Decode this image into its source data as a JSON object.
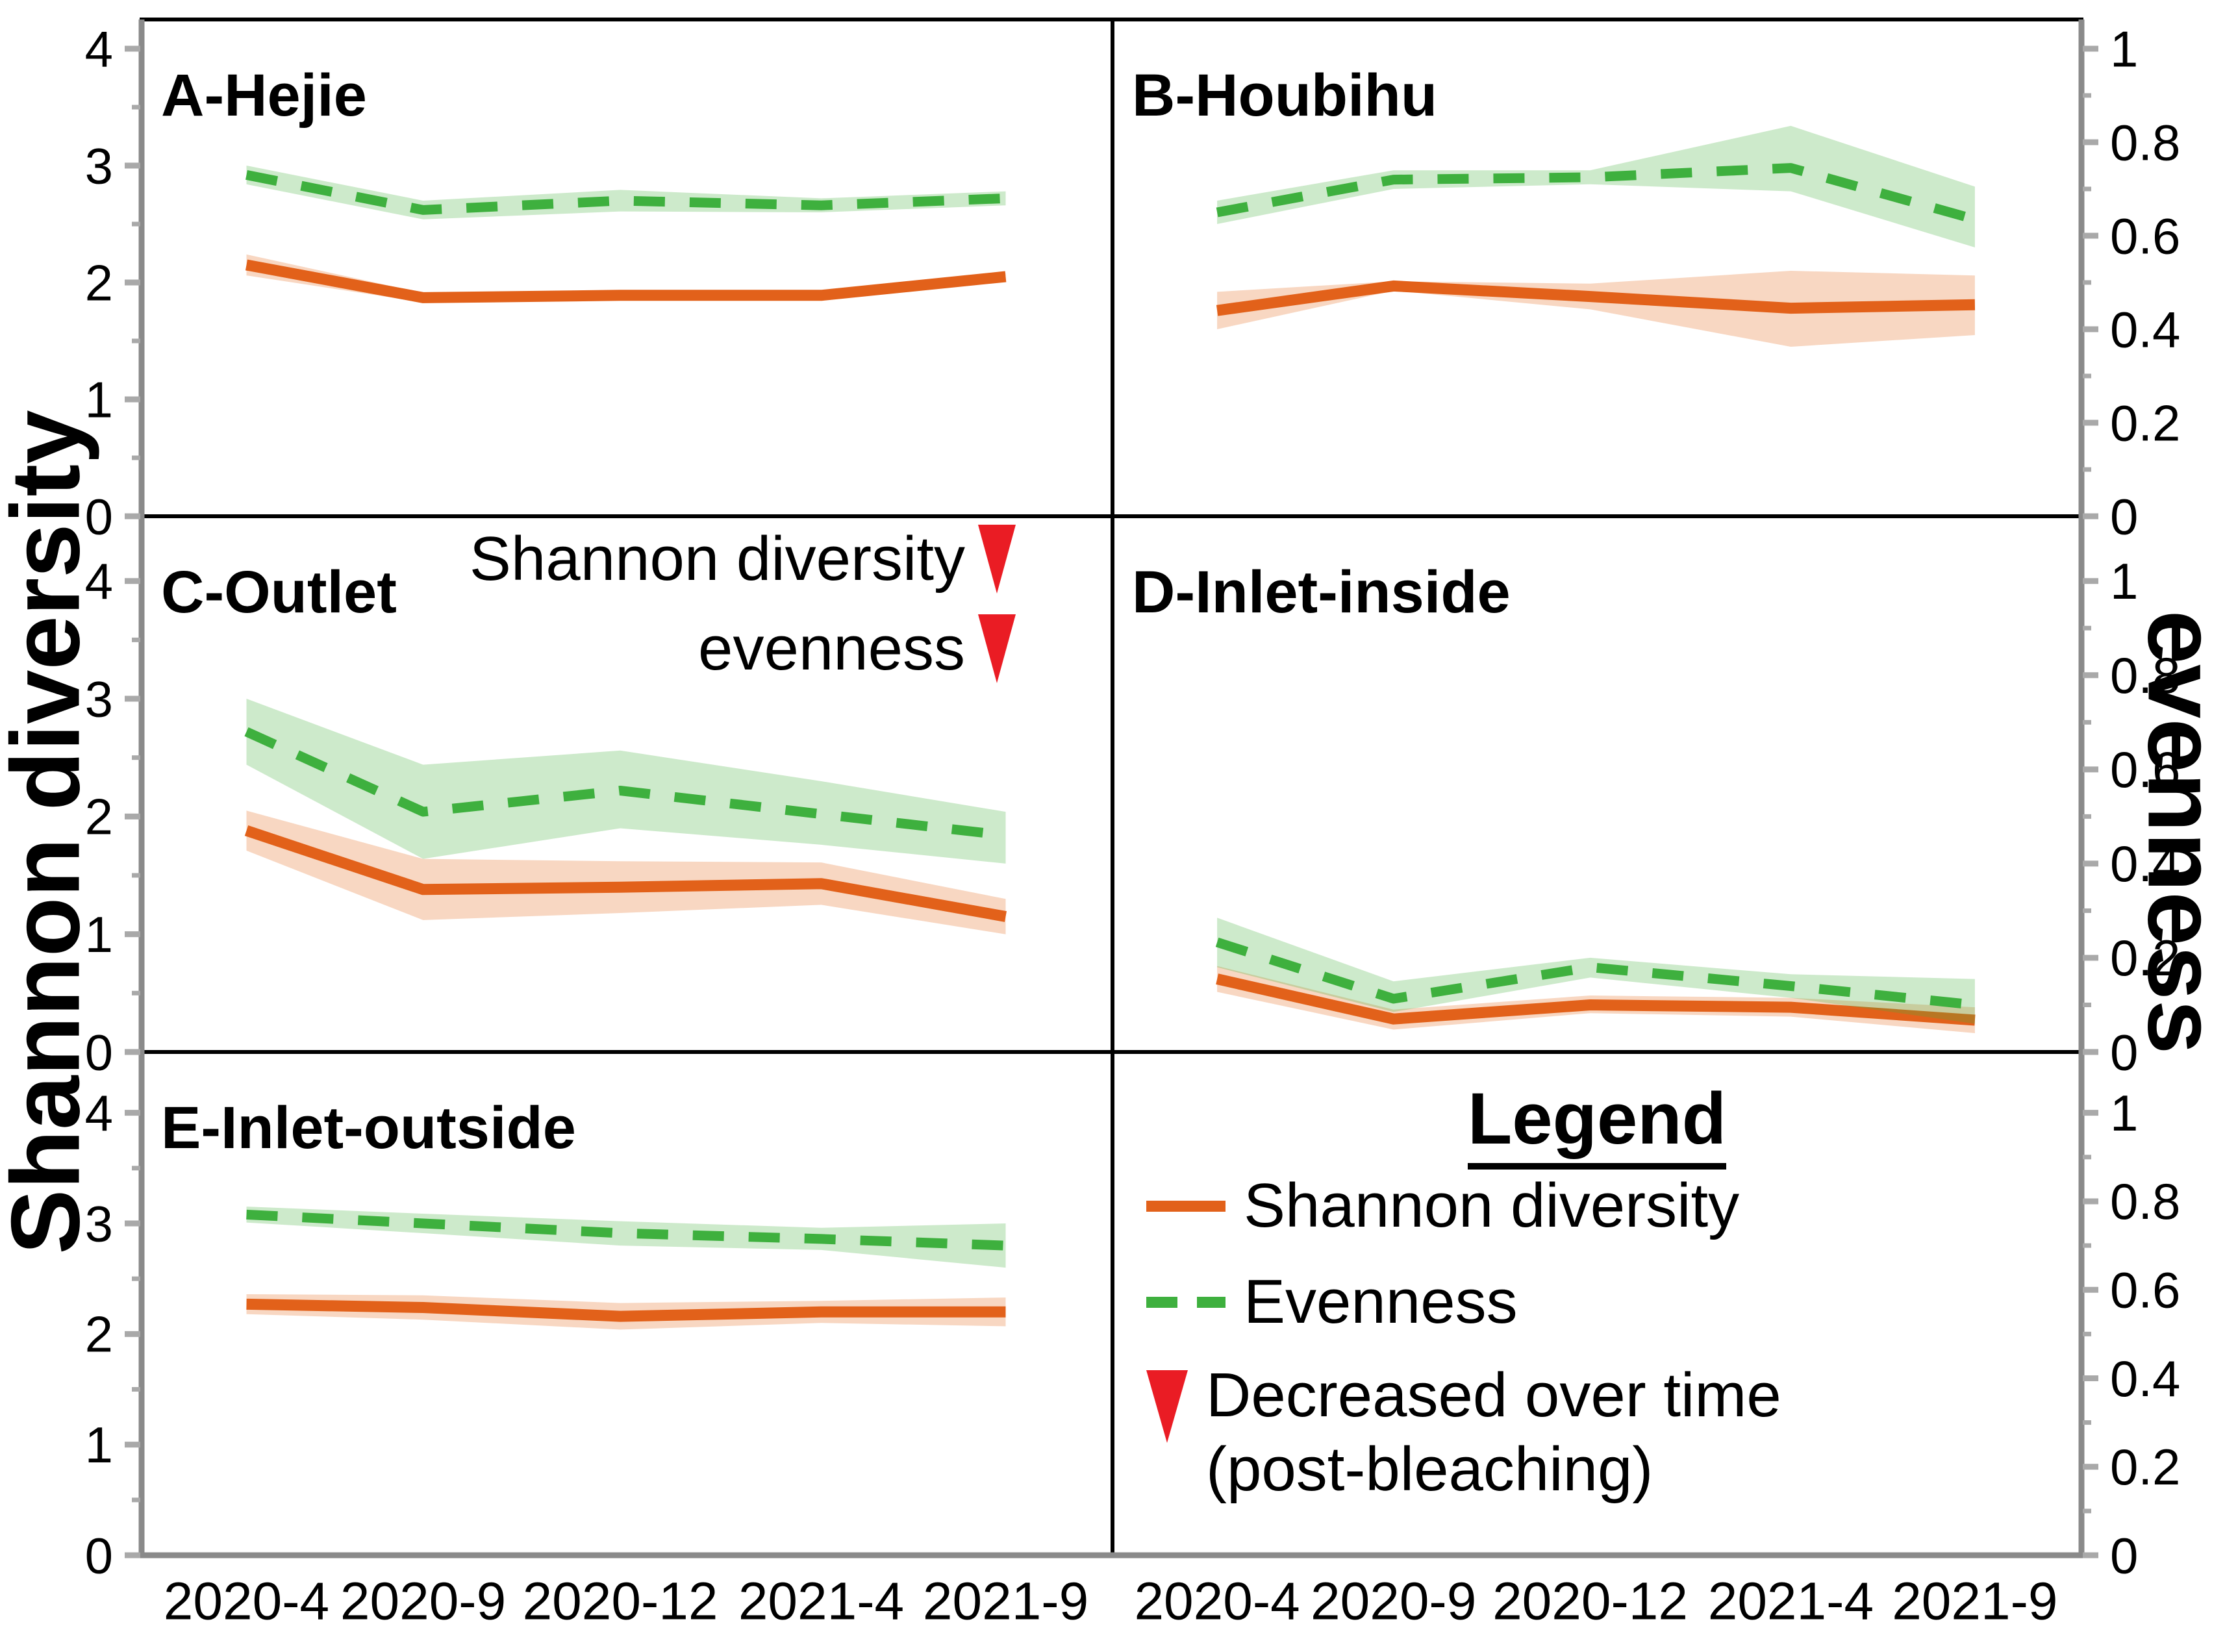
{
  "figure": {
    "left_axis_label": "Shannon diversity",
    "right_axis_label": "evenness",
    "x_tick_labels": [
      "2020-4",
      "2020-9",
      "2020-12",
      "2021-4",
      "2021-9"
    ],
    "left_tick_labels": [
      "0",
      "1",
      "2",
      "3",
      "4"
    ],
    "right_tick_labels": [
      "0",
      "0.2",
      "0.4",
      "0.6",
      "0.8",
      "1"
    ]
  },
  "colors": {
    "shannon_line": "#e2611a",
    "shannon_band": "rgba(230,106,31,0.27)",
    "evenness_line": "#3eb03e",
    "evenness_band": "rgba(70,176,62,0.27)",
    "triangle_red": "#ea1c24",
    "tick_gray": "#a9a9a9",
    "spine_gray": "#8a8a8a",
    "border_black": "#000000"
  },
  "legend": {
    "title": "Legend",
    "items": [
      {
        "marker": "orange-solid-line",
        "label": "Shannon diversity"
      },
      {
        "marker": "green-dashed-line",
        "label": "Evenness"
      },
      {
        "marker": "red-down-triangle",
        "label_line1": "Decreased over time",
        "label_line2": "(post-bleaching)"
      }
    ]
  },
  "chart_data": [
    {
      "type": "line",
      "id": "A",
      "title": "A-Hejie",
      "x": [
        "2020-4",
        "2020-9",
        "2020-12",
        "2021-4",
        "2021-9"
      ],
      "left_axis": {
        "label": "Shannon diversity",
        "range": [
          0,
          4
        ],
        "ticks": [
          0,
          1,
          2,
          3,
          4
        ]
      },
      "right_axis": {
        "label": "evenness",
        "range": [
          0,
          1
        ],
        "ticks": [
          0,
          0.2,
          0.4,
          0.6,
          0.8,
          1
        ]
      },
      "series": [
        {
          "name": "Shannon diversity",
          "axis": "left",
          "values": [
            2.15,
            1.87,
            1.89,
            1.89,
            2.05
          ],
          "band_upper": [
            2.24,
            1.91,
            1.93,
            1.92,
            2.08
          ],
          "band_lower": [
            2.06,
            1.83,
            1.85,
            1.86,
            2.02
          ]
        },
        {
          "name": "Evenness",
          "axis": "right",
          "values": [
            0.73,
            0.655,
            0.675,
            0.665,
            0.68
          ],
          "band_upper": [
            0.75,
            0.675,
            0.698,
            0.68,
            0.695
          ],
          "band_lower": [
            0.71,
            0.635,
            0.652,
            0.65,
            0.665
          ]
        }
      ],
      "annotations": []
    },
    {
      "type": "line",
      "id": "B",
      "title": "B-Houbihu",
      "x": [
        "2020-4",
        "2020-9",
        "2020-12",
        "2021-4",
        "2021-9"
      ],
      "left_axis": {
        "label": "Shannon diversity",
        "range": [
          0,
          4
        ],
        "ticks": [
          0,
          1,
          2,
          3,
          4
        ]
      },
      "right_axis": {
        "label": "evenness",
        "range": [
          0,
          1
        ],
        "ticks": [
          0,
          0.2,
          0.4,
          0.6,
          0.8,
          1
        ]
      },
      "series": [
        {
          "name": "Shannon diversity",
          "axis": "left",
          "values": [
            1.76,
            1.97,
            1.88,
            1.78,
            1.81
          ],
          "band_upper": [
            1.92,
            2.01,
            1.99,
            2.1,
            2.06
          ],
          "band_lower": [
            1.6,
            1.93,
            1.77,
            1.45,
            1.55
          ]
        },
        {
          "name": "Evenness",
          "axis": "right",
          "values": [
            0.65,
            0.72,
            0.725,
            0.745,
            0.635
          ],
          "band_upper": [
            0.675,
            0.74,
            0.74,
            0.835,
            0.705
          ],
          "band_lower": [
            0.625,
            0.7,
            0.71,
            0.695,
            0.575
          ]
        }
      ],
      "annotations": []
    },
    {
      "type": "line",
      "id": "C",
      "title": "C-Outlet",
      "x": [
        "2020-4",
        "2020-9",
        "2020-12",
        "2021-4",
        "2021-9"
      ],
      "left_axis": {
        "label": "Shannon diversity",
        "range": [
          0,
          4
        ],
        "ticks": [
          0,
          1,
          2,
          3,
          4
        ]
      },
      "right_axis": {
        "label": "evenness",
        "range": [
          0,
          1
        ],
        "ticks": [
          0,
          0.2,
          0.4,
          0.6,
          0.8,
          1
        ]
      },
      "series": [
        {
          "name": "Shannon diversity",
          "axis": "left",
          "values": [
            1.88,
            1.38,
            1.4,
            1.43,
            1.15
          ],
          "band_upper": [
            2.05,
            1.64,
            1.62,
            1.61,
            1.3
          ],
          "band_lower": [
            1.71,
            1.12,
            1.18,
            1.25,
            1.0
          ]
        },
        {
          "name": "Evenness",
          "axis": "right",
          "values": [
            0.68,
            0.51,
            0.555,
            0.505,
            0.46
          ],
          "band_upper": [
            0.75,
            0.61,
            0.64,
            0.575,
            0.51
          ],
          "band_lower": [
            0.61,
            0.41,
            0.475,
            0.44,
            0.4
          ]
        }
      ],
      "annotations": [
        {
          "text": "Shannon diversity",
          "marker": "red-down-triangle"
        },
        {
          "text": "evenness",
          "marker": "red-down-triangle"
        }
      ]
    },
    {
      "type": "line",
      "id": "D",
      "title": "D-Inlet-inside",
      "x": [
        "2020-4",
        "2020-9",
        "2020-12",
        "2021-4",
        "2021-9"
      ],
      "left_axis": {
        "label": "Shannon diversity",
        "range": [
          0,
          4
        ],
        "ticks": [
          0,
          1,
          2,
          3,
          4
        ]
      },
      "right_axis": {
        "label": "evenness",
        "range": [
          0,
          1
        ],
        "ticks": [
          0,
          0.2,
          0.4,
          0.6,
          0.8,
          1
        ]
      },
      "series": [
        {
          "name": "Shannon diversity",
          "axis": "left",
          "values": [
            0.62,
            0.28,
            0.4,
            0.38,
            0.27
          ],
          "band_upper": [
            0.73,
            0.36,
            0.48,
            0.46,
            0.38
          ],
          "band_lower": [
            0.51,
            0.19,
            0.33,
            0.3,
            0.16
          ]
        },
        {
          "name": "Evenness",
          "axis": "right",
          "values": [
            0.233,
            0.113,
            0.18,
            0.14,
            0.1
          ],
          "band_upper": [
            0.285,
            0.15,
            0.2,
            0.165,
            0.155
          ],
          "band_lower": [
            0.18,
            0.085,
            0.158,
            0.115,
            0.06
          ]
        }
      ],
      "annotations": []
    },
    {
      "type": "line",
      "id": "E",
      "title": "E-Inlet-outside",
      "x": [
        "2020-4",
        "2020-9",
        "2020-12",
        "2021-4",
        "2021-9"
      ],
      "left_axis": {
        "label": "Shannon diversity",
        "range": [
          0,
          4
        ],
        "ticks": [
          0,
          1,
          2,
          3,
          4
        ]
      },
      "right_axis": {
        "label": "evenness",
        "range": [
          0,
          1
        ],
        "ticks": [
          0,
          0.2,
          0.4,
          0.6,
          0.8,
          1
        ]
      },
      "series": [
        {
          "name": "Shannon diversity",
          "axis": "left",
          "values": [
            2.27,
            2.24,
            2.16,
            2.2,
            2.2
          ],
          "band_upper": [
            2.36,
            2.35,
            2.28,
            2.3,
            2.33
          ],
          "band_lower": [
            2.18,
            2.13,
            2.04,
            2.1,
            2.07
          ]
        },
        {
          "name": "Evenness",
          "axis": "right",
          "values": [
            0.77,
            0.75,
            0.728,
            0.715,
            0.7
          ],
          "band_upper": [
            0.788,
            0.772,
            0.755,
            0.74,
            0.75
          ],
          "band_lower": [
            0.752,
            0.728,
            0.7,
            0.69,
            0.65
          ]
        }
      ],
      "annotations": []
    }
  ]
}
